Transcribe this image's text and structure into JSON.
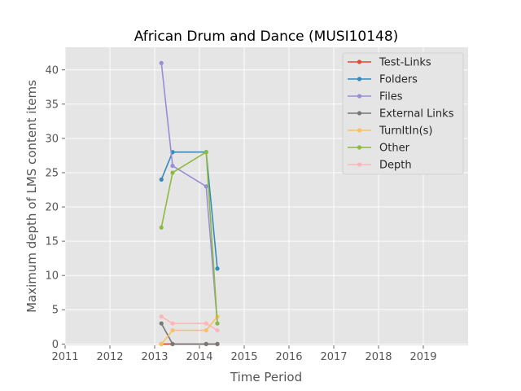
{
  "chart_data": {
    "type": "line",
    "title": "African Drum and Dance (MUSI10148)",
    "xlabel": "Time Period",
    "ylabel": "Maximum depth of LMS content items",
    "xlim": [
      2011,
      2020
    ],
    "ylim": [
      -0.2,
      43.3
    ],
    "x_ticks": [
      2011,
      2012,
      2013,
      2014,
      2015,
      2016,
      2017,
      2018,
      2019
    ],
    "x_tick_labels": [
      "2011",
      "2012",
      "2013",
      "2014",
      "2015",
      "2016",
      "2017",
      "2018",
      "2019"
    ],
    "y_ticks": [
      0,
      5,
      10,
      15,
      20,
      25,
      30,
      35,
      40
    ],
    "y_tick_labels": [
      "0",
      "5",
      "10",
      "15",
      "20",
      "25",
      "30",
      "35",
      "40"
    ],
    "grid": true,
    "legend_position": "top-right",
    "x": [
      2013.15,
      2013.4,
      2014.15,
      2014.4
    ],
    "series": [
      {
        "name": "Test-Links",
        "color": "#e24a33",
        "values": [
          0,
          0,
          0,
          0
        ]
      },
      {
        "name": "Folders",
        "color": "#348abd",
        "values": [
          24,
          28,
          28,
          11
        ]
      },
      {
        "name": "Files",
        "color": "#988ed5",
        "values": [
          41,
          26,
          23,
          3
        ]
      },
      {
        "name": "External Links",
        "color": "#777777",
        "values": [
          3,
          0,
          0,
          0
        ]
      },
      {
        "name": "TurnItIn(s)",
        "color": "#fbc15e",
        "values": [
          0,
          2,
          2,
          4
        ]
      },
      {
        "name": "Other",
        "color": "#8eba42",
        "values": [
          17,
          25,
          28,
          3
        ]
      },
      {
        "name": "Depth",
        "color": "#ffb5b8",
        "values": [
          4,
          3,
          3,
          2
        ]
      }
    ]
  }
}
